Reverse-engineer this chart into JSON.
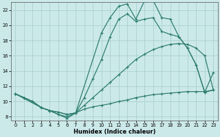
{
  "xlabel": "Humidex (Indice chaleur)",
  "bg_color": "#cce9ea",
  "grid_color": "#aacfcf",
  "line_color": "#2d7d6e",
  "xlim": [
    -0.5,
    23.5
  ],
  "ylim": [
    7.5,
    23.0
  ],
  "yticks": [
    8,
    10,
    12,
    14,
    16,
    18,
    20,
    22
  ],
  "xticks": [
    0,
    1,
    2,
    3,
    4,
    5,
    6,
    7,
    8,
    9,
    10,
    11,
    12,
    13,
    14,
    15,
    16,
    17,
    18,
    19,
    20,
    21,
    22,
    23
  ],
  "line_wavy_x": [
    0,
    1,
    2,
    3,
    4,
    5,
    6,
    7,
    10,
    11,
    12,
    13,
    14,
    15,
    16,
    17,
    18,
    19,
    20,
    21,
    22,
    23
  ],
  "line_wavy_y": [
    11,
    10.5,
    10,
    9.2,
    8.8,
    8.3,
    8.0,
    8.5,
    19.0,
    21.0,
    22.5,
    22.8,
    20.8,
    23.2,
    23.3,
    21.0,
    20.8,
    18.5,
    17.0,
    14.8,
    11.2,
    11.5
  ],
  "line_flat_x": [
    0,
    1,
    2,
    3,
    4,
    5,
    6,
    7,
    8,
    9,
    10,
    11,
    12,
    13,
    14,
    15,
    16,
    17,
    18,
    19,
    20,
    21,
    22,
    23
  ],
  "line_flat_y": [
    11,
    10.5,
    10,
    9.2,
    8.8,
    8.6,
    8.3,
    8.5,
    9.0,
    9.3,
    9.5,
    9.7,
    10.0,
    10.2,
    10.5,
    10.7,
    10.9,
    11.0,
    11.1,
    11.2,
    11.3,
    11.3,
    11.3,
    11.5
  ],
  "line_diag_x": [
    0,
    1,
    2,
    3,
    4,
    5,
    6,
    7,
    8,
    9,
    10,
    11,
    12,
    13,
    14,
    15,
    16,
    17,
    18,
    19,
    20,
    21,
    22,
    23
  ],
  "line_diag_y": [
    11,
    10.5,
    10,
    9.2,
    8.8,
    8.6,
    8.3,
    8.5,
    9.5,
    10.5,
    11.5,
    12.5,
    13.5,
    14.5,
    15.5,
    16.2,
    16.8,
    17.2,
    17.5,
    17.6,
    17.5,
    17.0,
    16.0,
    11.5
  ],
  "line_peak_x": [
    0,
    3,
    4,
    5,
    6,
    7,
    8,
    9,
    10,
    11,
    12,
    13,
    14,
    15,
    16,
    17,
    18,
    19,
    20,
    21,
    22,
    23
  ],
  "line_peak_y": [
    11,
    9.2,
    8.8,
    8.3,
    7.8,
    8.5,
    10.5,
    13.0,
    15.5,
    18.5,
    20.8,
    21.5,
    20.5,
    20.8,
    21.0,
    19.2,
    18.8,
    18.5,
    17.0,
    14.8,
    11.2,
    13.8
  ]
}
